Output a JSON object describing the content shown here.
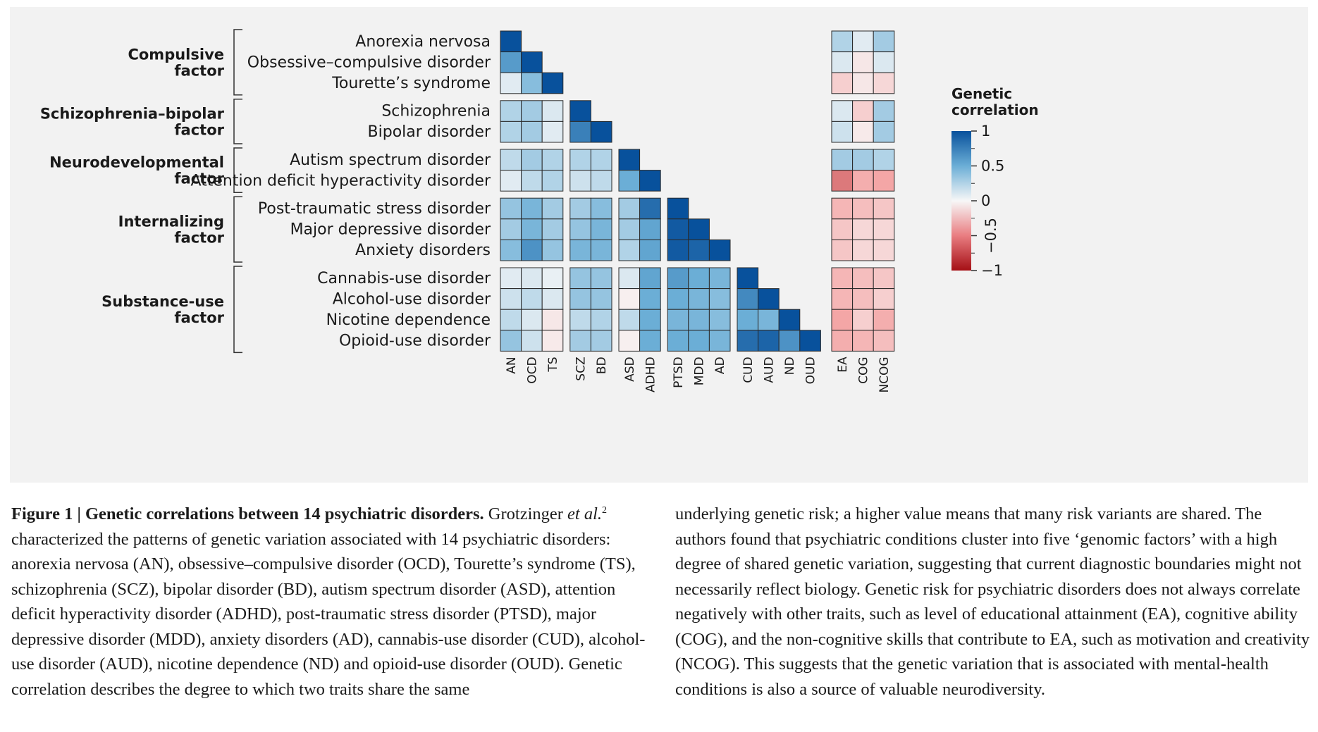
{
  "chart_data": {
    "type": "heatmap",
    "legend": {
      "title_line1": "Genetic",
      "title_line2": "correlation",
      "ticks": [
        "1",
        "0.5",
        "0",
        "−0.5",
        "−1"
      ],
      "tick_values": [
        1,
        0.5,
        0,
        -0.5,
        -1
      ],
      "colors": {
        "strong_positive": "#08519c",
        "mid_positive": "#6baed6",
        "neutral": "#f7f7f7",
        "mid_negative": "#f4a6a6",
        "strong_negative": "#a50f15"
      }
    },
    "factors": [
      {
        "label_line1": "Compulsive",
        "label_line2": "factor",
        "rows": [
          0,
          1,
          2
        ]
      },
      {
        "label_line1": "Schizophrenia–bipolar",
        "label_line2": "factor",
        "rows": [
          3,
          4
        ]
      },
      {
        "label_line1": "Neurodevelopmental",
        "label_line2": "factor",
        "rows": [
          5,
          6
        ]
      },
      {
        "label_line1": "Internalizing",
        "label_line2": "factor",
        "rows": [
          7,
          8,
          9
        ]
      },
      {
        "label_line1": "Substance-use",
        "label_line2": "factor",
        "rows": [
          10,
          11,
          12,
          13
        ]
      }
    ],
    "disorders": [
      "Anorexia nervosa",
      "Obsessive–compulsive disorder",
      "Tourette’s syndrome",
      "Schizophrenia",
      "Bipolar disorder",
      "Autism spectrum disorder",
      "Attention deficit hyperactivity disorder",
      "Post-traumatic stress disorder",
      "Major depressive disorder",
      "Anxiety disorders",
      "Cannabis-use disorder",
      "Alcohol-use disorder",
      "Nicotine dependence",
      "Opioid-use disorder"
    ],
    "disorder_abbrevs": [
      "AN",
      "OCD",
      "TS",
      "SCZ",
      "BD",
      "ASD",
      "ADHD",
      "PTSD",
      "MDD",
      "AD",
      "CUD",
      "AUD",
      "ND",
      "OUD"
    ],
    "trait_abbrevs": [
      "EA",
      "COG",
      "NCOG"
    ],
    "disorder_correlations": [
      [
        1.0
      ],
      [
        0.6,
        1.0
      ],
      [
        0.08,
        0.4,
        1.0
      ],
      [
        0.25,
        0.3,
        0.1,
        1.0
      ],
      [
        0.25,
        0.3,
        0.08,
        0.75,
        1.0
      ],
      [
        0.2,
        0.3,
        0.25,
        0.25,
        0.25,
        1.0
      ],
      [
        0.08,
        0.2,
        0.25,
        0.15,
        0.2,
        0.5,
        1.0
      ],
      [
        0.35,
        0.45,
        0.3,
        0.3,
        0.4,
        0.3,
        0.85,
        1.0
      ],
      [
        0.3,
        0.45,
        0.3,
        0.35,
        0.45,
        0.3,
        0.55,
        0.95,
        1.0
      ],
      [
        0.4,
        0.65,
        0.35,
        0.45,
        0.45,
        0.25,
        0.55,
        0.95,
        0.9,
        1.0
      ],
      [
        0.08,
        0.1,
        0.05,
        0.35,
        0.35,
        0.1,
        0.55,
        0.6,
        0.5,
        0.45,
        1.0
      ],
      [
        0.15,
        0.2,
        0.1,
        0.35,
        0.35,
        -0.05,
        0.5,
        0.5,
        0.45,
        0.4,
        0.7,
        1.0
      ],
      [
        0.2,
        0.1,
        -0.1,
        0.2,
        0.25,
        0.2,
        0.5,
        0.45,
        0.45,
        0.4,
        0.5,
        0.45,
        1.0
      ],
      [
        0.35,
        0.15,
        -0.08,
        0.3,
        0.3,
        -0.05,
        0.5,
        0.5,
        0.5,
        0.45,
        0.85,
        0.9,
        0.65,
        1.0
      ]
    ],
    "trait_correlations": [
      [
        0.25,
        0.08,
        0.3
      ],
      [
        0.1,
        -0.1,
        0.1
      ],
      [
        -0.25,
        -0.1,
        -0.2
      ],
      [
        0.1,
        -0.25,
        0.3
      ],
      [
        0.15,
        -0.08,
        0.3
      ],
      [
        0.3,
        0.3,
        0.25
      ],
      [
        -0.65,
        -0.45,
        -0.5
      ],
      [
        -0.4,
        -0.35,
        -0.3
      ],
      [
        -0.3,
        -0.2,
        -0.2
      ],
      [
        -0.3,
        -0.2,
        -0.2
      ],
      [
        -0.4,
        -0.35,
        -0.3
      ],
      [
        -0.4,
        -0.35,
        -0.25
      ],
      [
        -0.5,
        -0.25,
        -0.45
      ],
      [
        -0.45,
        -0.4,
        -0.35
      ]
    ]
  },
  "caption": {
    "fig_num": "Figure 1 | ",
    "heading": "Genetic correlations between 14 psychiatric disorders.",
    "author": " Grotzinger",
    "etal": "et al.",
    "ref": "2",
    "left_text": " characterized the patterns of genetic variation associated with 14 psychiatric disorders: anorexia nervosa (AN), obsessive–compulsive disorder (OCD), Tourette’s syndrome (TS), schizophrenia (SCZ), bipolar disorder (BD), autism spectrum disorder (ASD), attention deficit hyperactivity disorder (ADHD), post-traumatic stress disorder (PTSD), major depressive disorder (MDD), anxiety disorders (AD), cannabis-use disorder (CUD), alcohol-use disorder (AUD), nicotine dependence (ND) and opioid-use disorder (OUD). Genetic correlation describes the degree to which two traits share the same",
    "right_text": "underlying genetic risk; a higher value means that many risk variants are shared. The authors found that psychiatric conditions cluster into five ‘genomic factors’ with a high degree of shared genetic variation, suggesting that current diagnostic boundaries might not necessarily reflect biology. Genetic risk for psychiatric disorders does not always correlate negatively with other traits, such as level of educational attainment (EA), cognitive ability (COG), and the non-cognitive skills that contribute to EA, such as motivation and creativity (NCOG). This suggests that the genetic variation that is associated with mental-health conditions is also a source of valuable neurodiversity."
  }
}
